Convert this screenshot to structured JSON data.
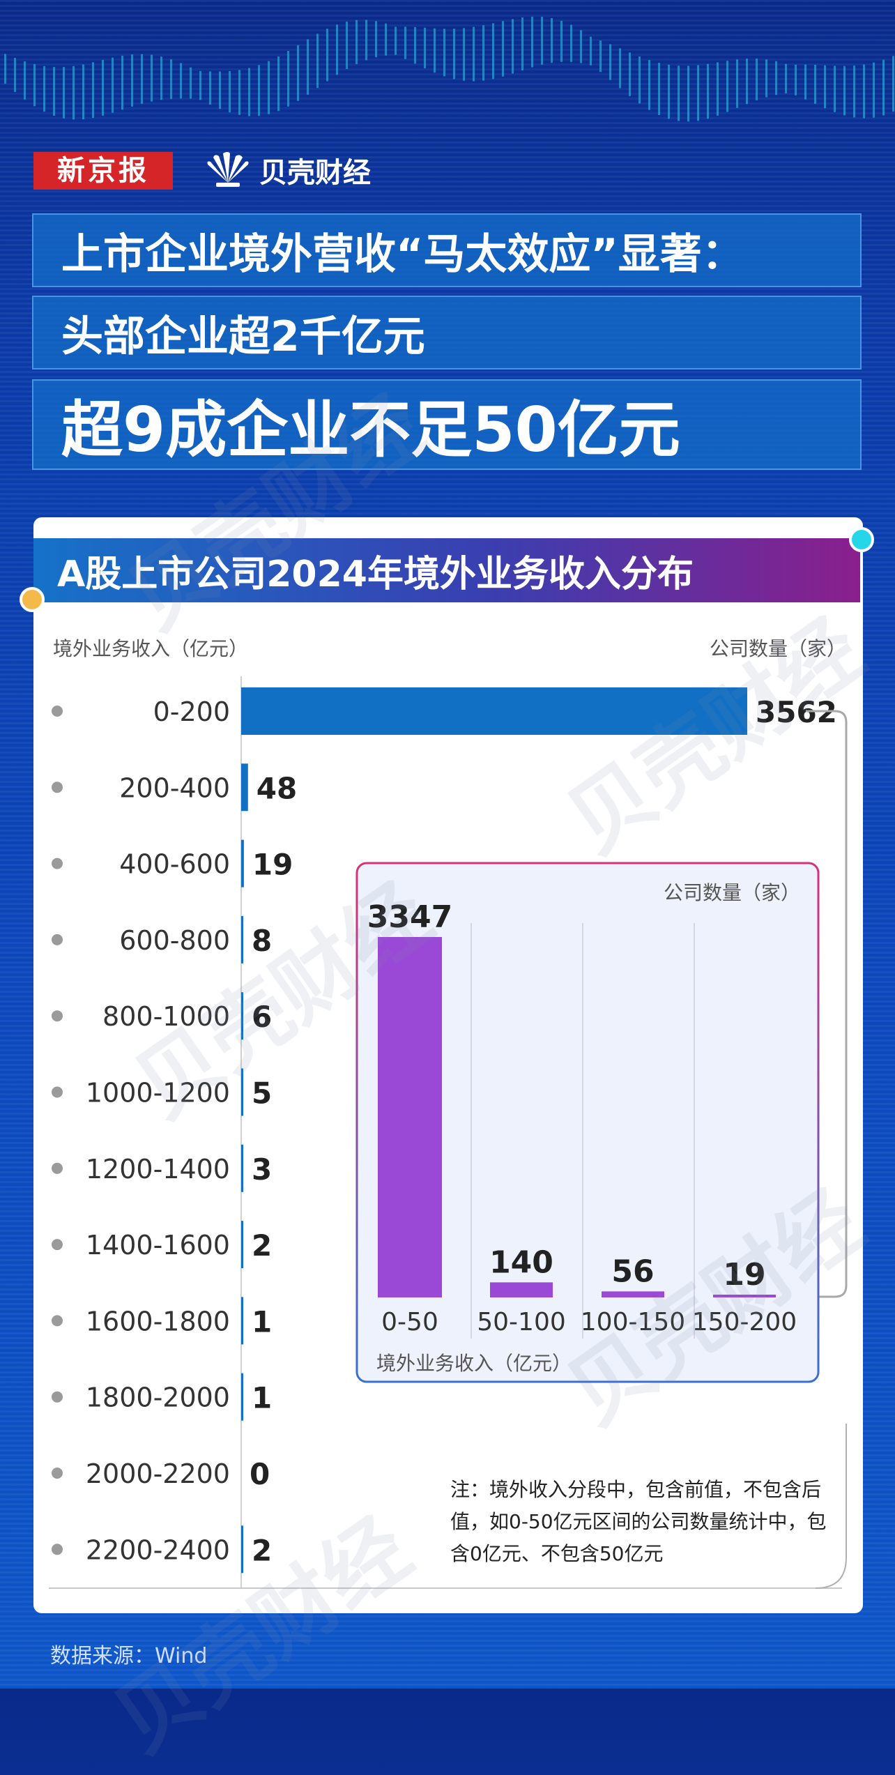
{
  "brand": {
    "newspaper": "新京报",
    "channel": "贝壳财经",
    "watermark": "贝壳财经"
  },
  "headlines": [
    "上市企业境外营收“马太效应”显著：",
    "头部企业超2千亿元",
    "超9成企业不足50亿元"
  ],
  "chart_title": "A股上市公司2024年境外业务收入分布",
  "colors": {
    "main_bar": "#1170c4",
    "inset_bar": "#9a48d6",
    "accent_pink": "#d6327a"
  },
  "chart_data": [
    {
      "type": "bar",
      "orientation": "horizontal",
      "ylabel": "境外业务收入（亿元）",
      "xlabel": "公司数量（家）",
      "categories": [
        "0-200",
        "200-400",
        "400-600",
        "600-800",
        "800-1000",
        "1000-1200",
        "1200-1400",
        "1400-1600",
        "1600-1800",
        "1800-2000",
        "2000-2200",
        "2200-2400"
      ],
      "values": [
        3562,
        48,
        19,
        8,
        6,
        5,
        3,
        2,
        1,
        1,
        0,
        2
      ],
      "grid": false
    },
    {
      "type": "bar",
      "orientation": "vertical",
      "xlabel": "境外业务收入（亿元）",
      "ylabel": "公司数量（家）",
      "categories": [
        "0-50",
        "50-100",
        "100-150",
        "150-200"
      ],
      "values": [
        3347,
        140,
        56,
        19
      ],
      "grid": true
    }
  ],
  "note": "注：境外收入分段中，包含前值，不包含后值，如0-50亿元区间的公司数量统计中，包含0亿元、不包含50亿元",
  "source": "数据来源：Wind"
}
